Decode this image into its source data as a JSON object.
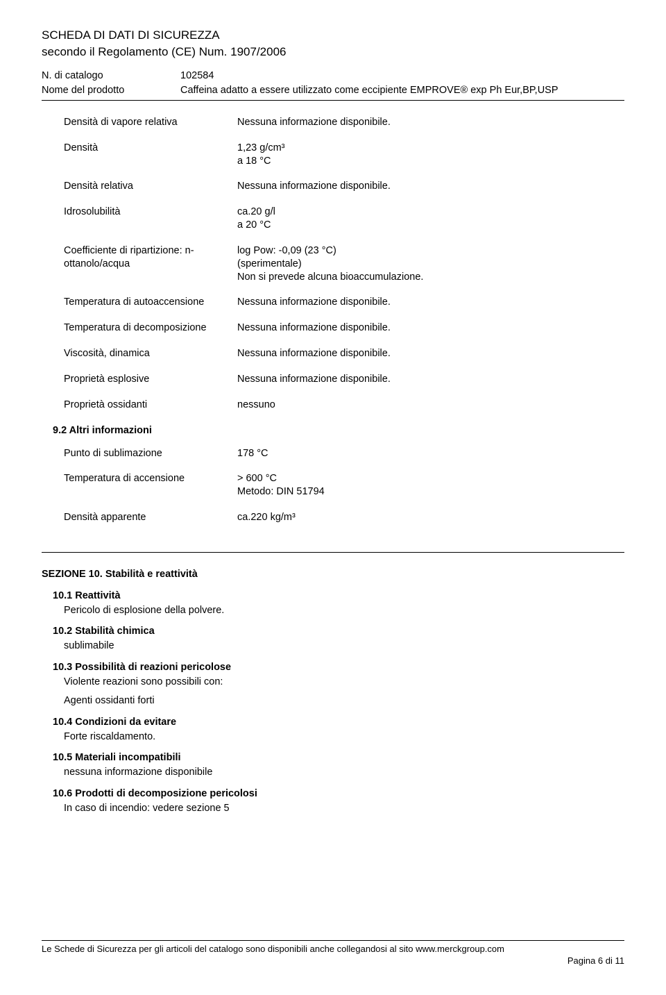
{
  "header": {
    "title": "SCHEDA DI DATI DI SICUREZZA",
    "subtitle": "secondo il Regolamento (CE) Num. 1907/2006",
    "catalog_label": "N. di catalogo",
    "catalog_value": "102584",
    "product_label": "Nome del prodotto",
    "product_value": "Caffeina adatto a essere utilizzato come eccipiente EMPROVE® exp Ph Eur,BP,USP"
  },
  "properties": [
    {
      "label": "Densità di vapore relativa",
      "value": "Nessuna informazione disponibile."
    },
    {
      "label": "Densità",
      "value": "1,23 g/cm³\na 18 °C"
    },
    {
      "label": "Densità relativa",
      "value": "Nessuna informazione disponibile."
    },
    {
      "label": "Idrosolubilità",
      "value": "ca.20 g/l\na 20 °C"
    },
    {
      "label": "Coefficiente di ripartizione: n-ottanolo/acqua",
      "value": "log Pow:  -0,09 (23 °C)\n(sperimentale)\nNon si prevede alcuna bioaccumulazione."
    },
    {
      "label": "Temperatura di autoaccensione",
      "value": "Nessuna informazione disponibile."
    },
    {
      "label": "Temperatura di decomposizione",
      "value": "Nessuna informazione disponibile."
    },
    {
      "label": "Viscosità, dinamica",
      "value": "Nessuna informazione disponibile."
    },
    {
      "label": "Proprietà esplosive",
      "value": "Nessuna informazione disponibile."
    },
    {
      "label": "Proprietà ossidanti",
      "value": "nessuno"
    }
  ],
  "section92": {
    "title": "9.2 Altri informazioni",
    "rows": [
      {
        "label": "Punto di sublimazione",
        "value": "178 °C"
      },
      {
        "label": "Temperatura di accensione",
        "value": "> 600 °C\nMetodo: DIN 51794"
      },
      {
        "label": "Densità apparente",
        "value": "ca.220 kg/m³"
      }
    ]
  },
  "section10": {
    "heading": "SEZIONE 10. Stabilità e reattività",
    "s101_title": "10.1 Reattività",
    "s101_body": "Pericolo di esplosione della polvere.",
    "s102_title": "10.2 Stabilità chimica",
    "s102_body": "sublimabile",
    "s103_title": "10.3 Possibilità di reazioni pericolose",
    "s103_body1": "Violente reazioni sono possibili con:",
    "s103_body2": "Agenti ossidanti forti",
    "s104_title": "10.4 Condizioni da evitare",
    "s104_body": "Forte riscaldamento.",
    "s105_title": "10.5 Materiali incompatibili",
    "s105_body": "nessuna informazione disponibile",
    "s106_title": "10.6 Prodotti di decomposizione pericolosi",
    "s106_body": "In caso di incendio: vedere sezione 5"
  },
  "footer": {
    "left": "Le Schede di Sicurezza per gli articoli del catalogo sono disponibili anche collegandosi al sito www.merckgroup.com",
    "right": "Pagina 6 di 11"
  }
}
